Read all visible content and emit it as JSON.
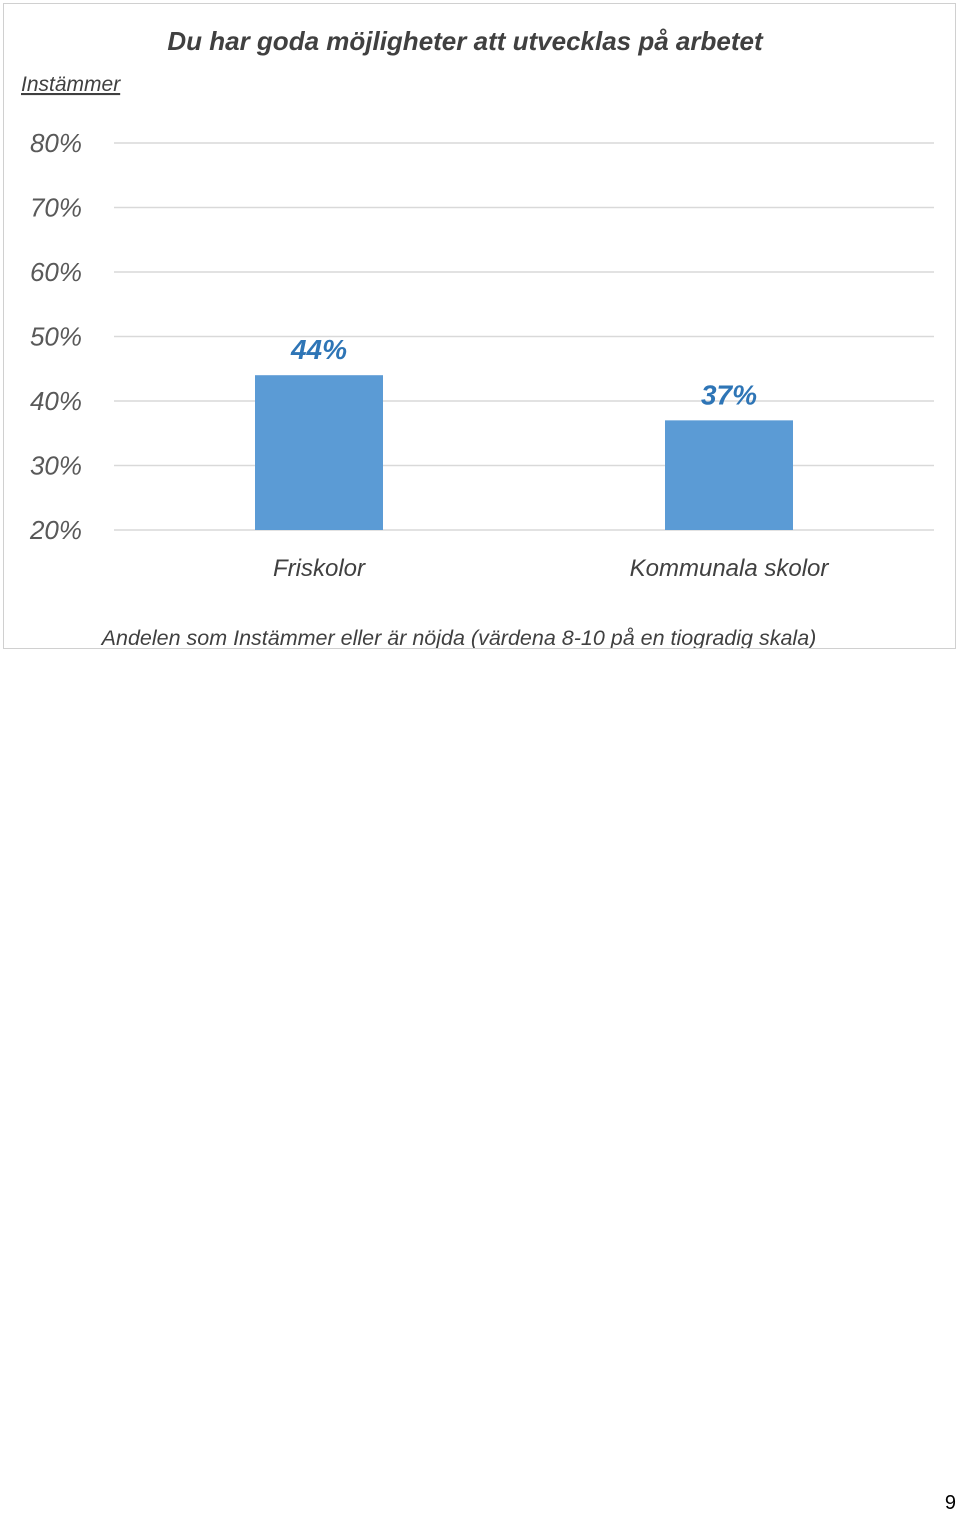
{
  "chart_data": {
    "type": "bar",
    "title": "Du har goda möjligheter att utvecklas på arbetet",
    "ylabel": "Instämmer",
    "xlabel": "",
    "categories": [
      "Friskolor",
      "Kommunala skolor"
    ],
    "values": [
      44,
      37
    ],
    "value_labels": [
      "44%",
      "37%"
    ],
    "ylim": [
      20,
      80
    ],
    "yticks": [
      20,
      30,
      40,
      50,
      60,
      70,
      80
    ],
    "ytick_labels": [
      "20%",
      "30%",
      "40%",
      "50%",
      "60%",
      "70%",
      "80%"
    ],
    "grid": true,
    "bar_color": "#5b9bd5",
    "label_color": "#2e75b6",
    "footnote": "Andelen som Instämmer eller är nöjda (värdena 8-10 på en tiogradig skala)"
  },
  "page": {
    "number": "9"
  }
}
